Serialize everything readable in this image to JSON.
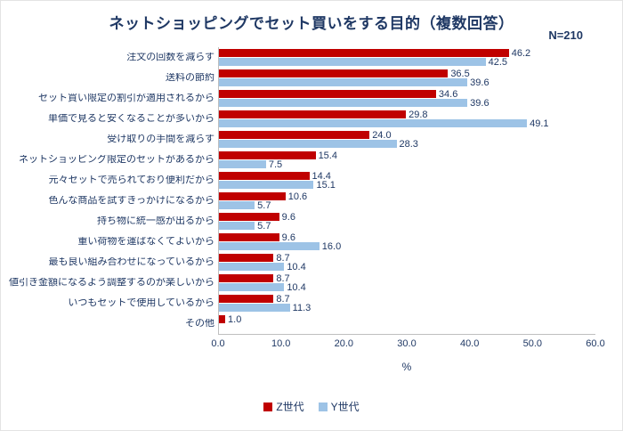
{
  "colors": {
    "z_series": "#C00000",
    "y_series": "#9DC3E6",
    "text_navy": "#1F3864",
    "axis_line": "#BFBFBF"
  },
  "chart_data": {
    "type": "bar",
    "orientation": "horizontal",
    "title": "ネットショッピングでセット買いをする目的（複数回答）",
    "sample_label": "N=210",
    "xlabel": "%",
    "xlim": [
      0,
      60
    ],
    "x_ticks": [
      "0.0",
      "10.0",
      "20.0",
      "30.0",
      "40.0",
      "50.0",
      "60.0"
    ],
    "legend_position": "bottom",
    "grid": false,
    "categories": [
      "注文の回数を減らす",
      "送料の節約",
      "セット買い限定の割引が適用されるから",
      "単価で見ると安くなることが多いから",
      "受け取りの手間を減らす",
      "ネットショッピング限定のセットがあるから",
      "元々セットで売られており便利だから",
      "色んな商品を試すきっかけになるから",
      "持ち物に統一感が出るから",
      "重い荷物を運ばなくてよいから",
      "最も良い組み合わせになっているから",
      "値引き金額になるよう調整するのが楽しいから",
      "いつもセットで使用しているから",
      "その他"
    ],
    "series": [
      {
        "key": "z",
        "name": "Z世代",
        "color": "#C00000",
        "values": [
          46.2,
          36.5,
          34.6,
          29.8,
          24.0,
          15.4,
          14.4,
          10.6,
          9.6,
          9.6,
          8.7,
          8.7,
          8.7,
          1.0
        ]
      },
      {
        "key": "y",
        "name": "Y世代",
        "color": "#9DC3E6",
        "values": [
          42.5,
          39.6,
          39.6,
          49.1,
          28.3,
          7.5,
          15.1,
          5.7,
          5.7,
          16.0,
          10.4,
          10.4,
          11.3,
          null
        ]
      }
    ]
  }
}
